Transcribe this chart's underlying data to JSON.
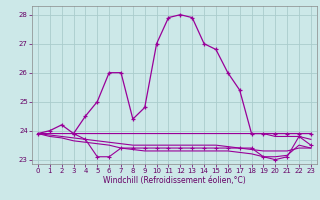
{
  "xlabel": "Windchill (Refroidissement éolien,°C)",
  "hours": [
    0,
    1,
    2,
    3,
    4,
    5,
    6,
    7,
    8,
    9,
    10,
    11,
    12,
    13,
    14,
    15,
    16,
    17,
    18,
    19,
    20,
    21,
    22,
    23
  ],
  "main_curve": [
    23.9,
    24.0,
    24.2,
    23.9,
    24.5,
    25.0,
    26.0,
    26.0,
    24.4,
    24.8,
    27.0,
    27.9,
    28.0,
    27.9,
    27.0,
    26.8,
    26.0,
    25.4,
    23.9,
    23.9,
    23.9,
    23.9,
    23.9,
    23.9
  ],
  "flat1": [
    23.9,
    23.9,
    23.9,
    23.9,
    23.9,
    23.9,
    23.9,
    23.9,
    23.9,
    23.9,
    23.9,
    23.9,
    23.9,
    23.9,
    23.9,
    23.9,
    23.9,
    23.9,
    23.9,
    23.9,
    23.8,
    23.8,
    23.8,
    23.7
  ],
  "flat2": [
    23.9,
    23.85,
    23.8,
    23.75,
    23.7,
    23.65,
    23.6,
    23.55,
    23.5,
    23.5,
    23.5,
    23.5,
    23.5,
    23.5,
    23.5,
    23.5,
    23.45,
    23.4,
    23.35,
    23.3,
    23.3,
    23.3,
    23.4,
    23.4
  ],
  "flat3": [
    23.9,
    23.8,
    23.75,
    23.65,
    23.6,
    23.55,
    23.5,
    23.4,
    23.35,
    23.3,
    23.3,
    23.3,
    23.3,
    23.3,
    23.3,
    23.3,
    23.3,
    23.25,
    23.2,
    23.1,
    23.1,
    23.15,
    23.5,
    23.4
  ],
  "bottom_curve_x": [
    3,
    4,
    5,
    6,
    7,
    8,
    9,
    10,
    11,
    12,
    13,
    14,
    15,
    16,
    17,
    18,
    19,
    20,
    21,
    22,
    23
  ],
  "bottom_curve": [
    23.9,
    23.7,
    23.1,
    23.1,
    23.4,
    23.4,
    23.4,
    23.4,
    23.4,
    23.4,
    23.4,
    23.4,
    23.4,
    23.4,
    23.4,
    23.4,
    23.1,
    23.0,
    23.1,
    23.8,
    23.5
  ],
  "ylim": [
    22.85,
    28.3
  ],
  "yticks": [
    23,
    24,
    25,
    26,
    27,
    28
  ],
  "xticks": [
    0,
    1,
    2,
    3,
    4,
    5,
    6,
    7,
    8,
    9,
    10,
    11,
    12,
    13,
    14,
    15,
    16,
    17,
    18,
    19,
    20,
    21,
    22,
    23
  ],
  "line_color": "#990099",
  "bg_color": "#cce8e8",
  "grid_color": "#aacccc",
  "text_color": "#660066",
  "spine_color": "#888888"
}
